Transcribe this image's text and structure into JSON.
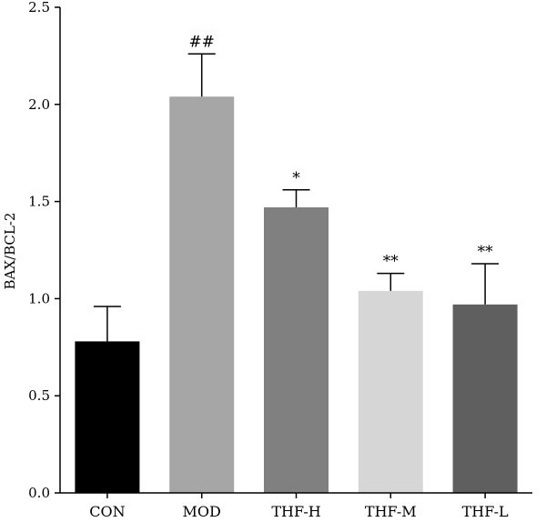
{
  "chart_data": {
    "type": "bar",
    "title": "",
    "xlabel": "",
    "ylabel": "BAX/BCL-2",
    "ylim": [
      0,
      2.5
    ],
    "yticks": [
      "0.0",
      "0.5",
      "1.0",
      "1.5",
      "2.0",
      "2.5"
    ],
    "grid": false,
    "legend": "none",
    "categories": [
      "CON",
      "MOD",
      "THF-H",
      "THF-M",
      "THF-L"
    ],
    "values": [
      0.78,
      2.04,
      1.47,
      1.04,
      0.97
    ],
    "errors": [
      0.18,
      0.22,
      0.09,
      0.09,
      0.21
    ],
    "significance": [
      "",
      "##",
      "*",
      "**",
      "**"
    ],
    "colors": [
      "#000000",
      "#a6a6a6",
      "#808080",
      "#d6d6d6",
      "#5f5f5f"
    ]
  }
}
